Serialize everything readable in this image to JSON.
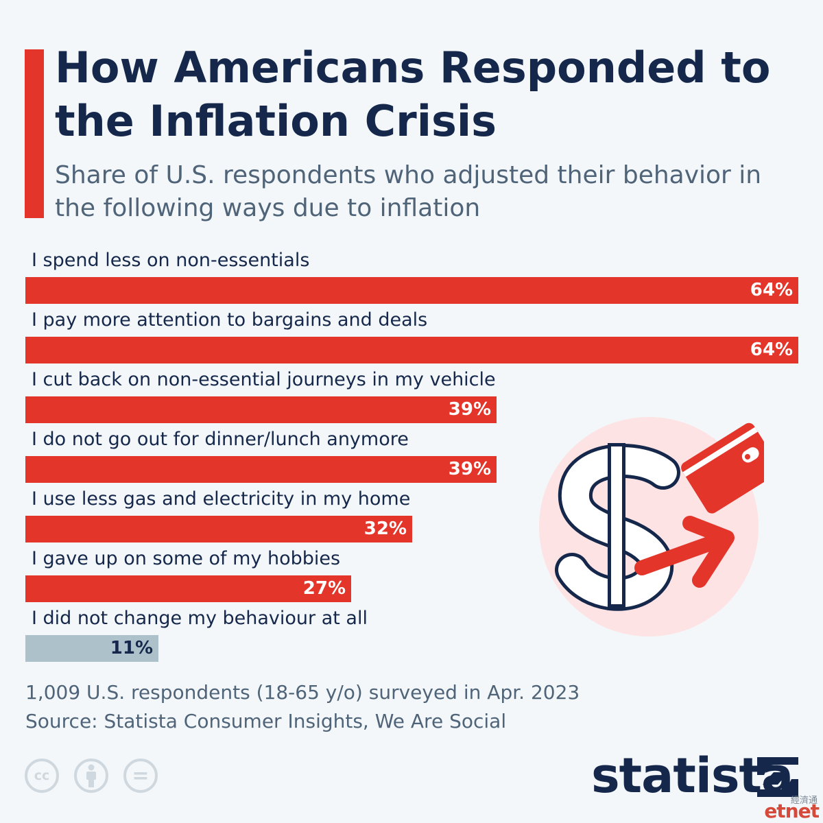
{
  "title": "How Americans Responded to the Inflation Crisis",
  "subtitle": "Share of U.S. respondents who adjusted their behavior in the following ways due to inflation",
  "chart_data": {
    "type": "bar",
    "orientation": "horizontal",
    "title": "How Americans Responded to the Inflation Crisis",
    "subtitle": "Share of U.S. respondents who adjusted their behavior in the following ways due to inflation",
    "categories": [
      "I spend less on non-essentials",
      "I pay more attention to bargains and deals",
      "I cut back on non-essential journeys in my vehicle",
      "I do not go out for dinner/lunch anymore",
      "I use less gas and electricity in my home",
      "I gave up on some of my hobbies",
      "I did not change my behaviour at all"
    ],
    "values": [
      64,
      64,
      39,
      39,
      32,
      27,
      11
    ],
    "value_labels": [
      "64%",
      "64%",
      "39%",
      "39%",
      "32%",
      "27%",
      "11%"
    ],
    "unit": "%",
    "xlim": [
      0,
      64
    ],
    "grid": false,
    "legend": "none",
    "bar_colors": [
      "#e4352b",
      "#e4352b",
      "#e4352b",
      "#e4352b",
      "#e4352b",
      "#e4352b",
      "#adc1cb"
    ],
    "value_label_colors": [
      "#ffffff",
      "#ffffff",
      "#ffffff",
      "#ffffff",
      "#ffffff",
      "#ffffff",
      "#15284b"
    ]
  },
  "footer": {
    "note": "1,009 U.S. respondents (18-65 y/o) surveyed in Apr. 2023",
    "source": "Source: Statista Consumer Insights, We Are Social",
    "license_icons": [
      {
        "name": "cc-icon",
        "text": "cc"
      },
      {
        "name": "attribution-icon"
      },
      {
        "name": "no-derivatives-icon",
        "text": "="
      }
    ]
  },
  "brand": {
    "name": "statista"
  },
  "watermark": {
    "zh": "經濟通",
    "en": "etnet"
  },
  "illustration": {
    "icons": [
      "dollar-sign-icon",
      "wallet-icon",
      "arrow-icon"
    ]
  },
  "colors": {
    "accent": "#e4352b",
    "navy": "#15284b",
    "muted_text": "#4f6478",
    "neutral_bar": "#adc1cb",
    "background": "#f3f7fa",
    "illustration_circle": "#fde3e3"
  }
}
